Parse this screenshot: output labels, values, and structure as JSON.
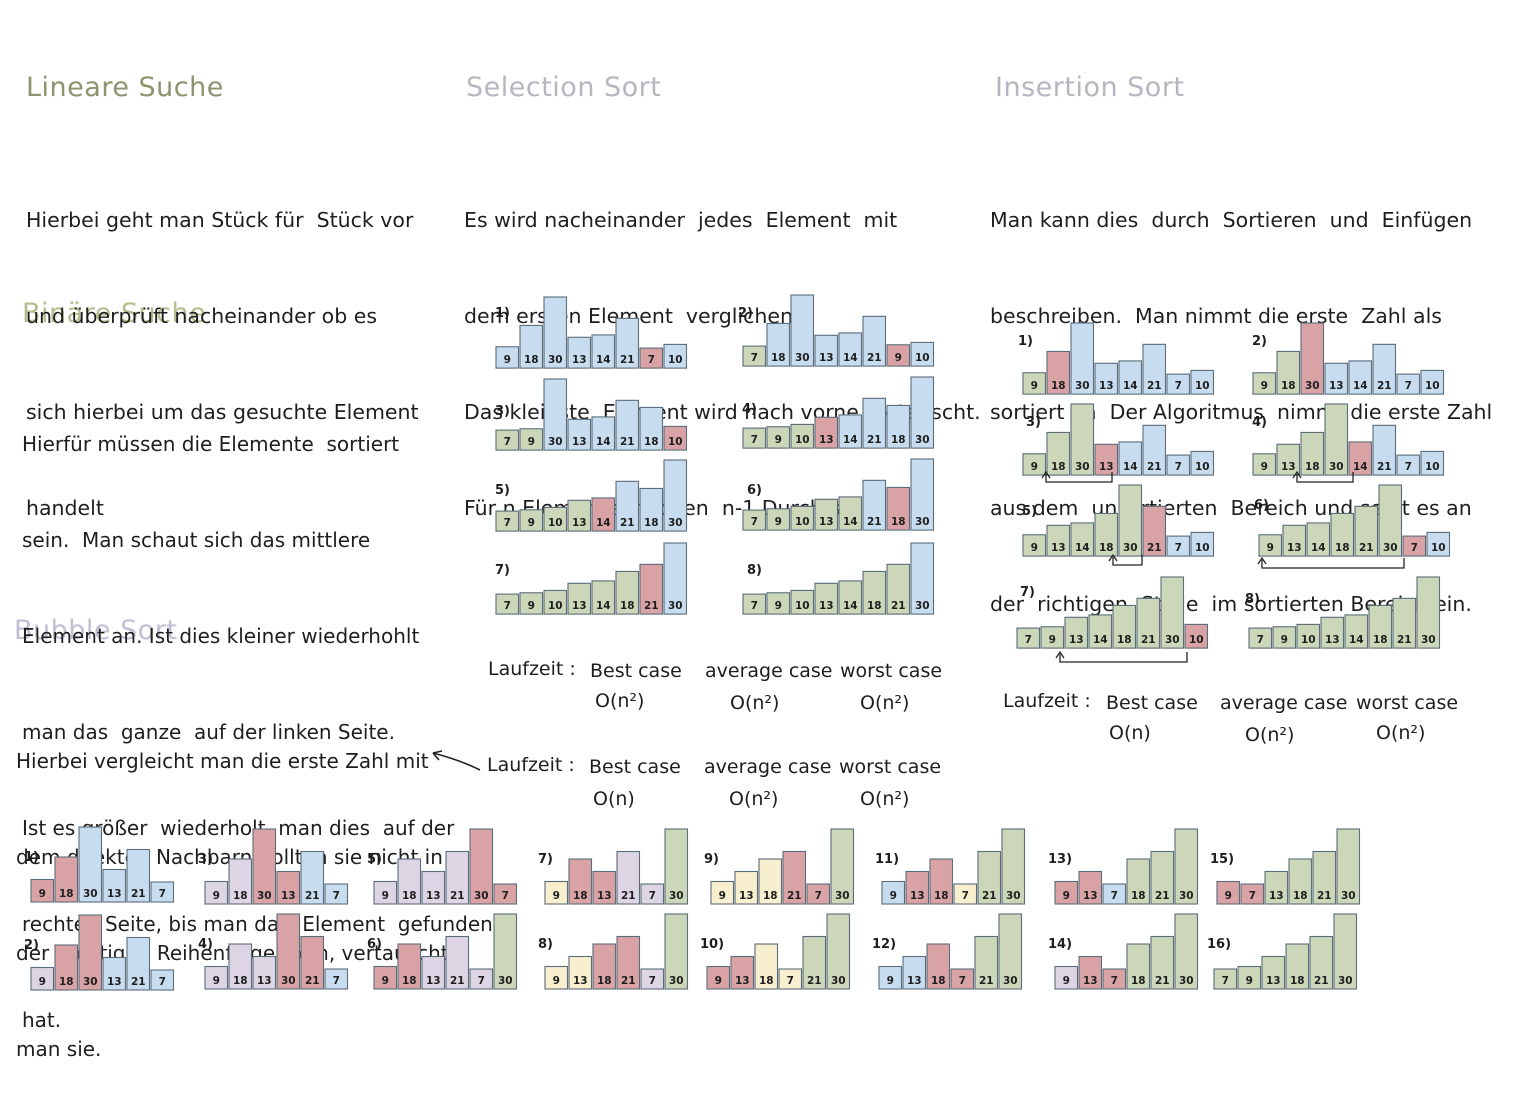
{
  "colors": {
    "blue": "#c8dcef",
    "red": "#d9a3a6",
    "green": "#cbd7b8",
    "lav": "#ddd5e4",
    "yellow": "#f8efcf",
    "stroke": "#5b6c7a"
  },
  "lineare": {
    "title": "Lineare Suche",
    "lines": [
      "Hierbei geht man Stück für  Stück vor",
      "und überprüft nacheinander ob es",
      "sich hierbei um das gesuchte Element",
      "handelt"
    ]
  },
  "binaere": {
    "title": "Binäre Suche",
    "lines": [
      "Hierfür müssen die Elemente  sortiert",
      "sein.  Man schaut sich das mittlere",
      "Element an. Ist dies kleiner wiederhohlt",
      "man das  ganze  auf der linken Seite.",
      "Ist es größer  wiederholt  man dies  auf der",
      "rechten Seite, bis man das  Element  gefunden",
      "hat."
    ]
  },
  "bubble": {
    "title": "Bubble  Sort",
    "lines": [
      "Hierbei vergleicht man die erste Zahl mit",
      "dem direkten Nachbarn Sollten sie nicht in",
      "der  richtigen Reihenfolge  sein, vertauscht",
      "man sie."
    ],
    "laufzeit": {
      "label": "Laufzeit :",
      "best_label": "Best case",
      "best": "O(n)",
      "avg_label": "average case",
      "avg": "O(n²)",
      "worst_label": "worst case",
      "worst": "O(n²)"
    }
  },
  "selection": {
    "title": "Selection  Sort",
    "lines": [
      "Es wird nacheinander  jedes  Element  mit",
      "dem ersten Element  verglichen.",
      "Das kleinste  Element wird nach vorne  getauscht.",
      "Für n Elemente  reichen  n-1 Durchgänge"
    ],
    "laufzeit": {
      "label": "Laufzeit :",
      "best_label": "Best case",
      "best": "O(n²)",
      "avg_label": "average case",
      "avg": "O(n²)",
      "worst_label": "worst case",
      "worst": "O(n²)"
    }
  },
  "insertion": {
    "title": "Insertion  Sort",
    "lines": [
      "Man kann dies  durch  Sortieren  und  Einfügen",
      "beschreiben.  Man nimmt die erste  Zahl als",
      "sortiert an  Der Algoritmus  nimmt die erste Zahl",
      "aus dem  unsortierten  Bereich und setzt es an",
      "der  richtigen  Stelle  im sortierten Bereich ein."
    ],
    "laufzeit": {
      "label": "Laufzeit :",
      "best_label": "Best case",
      "best": "O(n)",
      "avg_label": "average case",
      "avg": "O(n²)",
      "worst_label": "worst case",
      "worst": "O(n²)"
    }
  },
  "chart_data": [
    {
      "id": "sel1",
      "label": "1)",
      "type": "bar",
      "values": [
        9,
        18,
        30,
        13,
        14,
        21,
        7,
        10
      ],
      "colors": [
        "b",
        "b",
        "b",
        "b",
        "b",
        "b",
        "r",
        "b"
      ]
    },
    {
      "id": "sel2",
      "label": "2)",
      "type": "bar",
      "values": [
        7,
        18,
        30,
        13,
        14,
        21,
        9,
        10
      ],
      "colors": [
        "g",
        "b",
        "b",
        "b",
        "b",
        "b",
        "r",
        "b"
      ]
    },
    {
      "id": "sel3",
      "label": "3)",
      "type": "bar",
      "values": [
        7,
        9,
        30,
        13,
        14,
        21,
        18,
        10
      ],
      "colors": [
        "g",
        "g",
        "b",
        "b",
        "b",
        "b",
        "b",
        "r"
      ]
    },
    {
      "id": "sel4",
      "label": "4)",
      "type": "bar",
      "values": [
        7,
        9,
        10,
        13,
        14,
        21,
        18,
        30
      ],
      "colors": [
        "g",
        "g",
        "g",
        "r",
        "b",
        "b",
        "b",
        "b"
      ]
    },
    {
      "id": "sel5",
      "label": "5)",
      "type": "bar",
      "values": [
        7,
        9,
        10,
        13,
        14,
        21,
        18,
        30
      ],
      "colors": [
        "g",
        "g",
        "g",
        "g",
        "r",
        "b",
        "b",
        "b"
      ]
    },
    {
      "id": "sel6",
      "label": "6)",
      "type": "bar",
      "values": [
        7,
        9,
        10,
        13,
        14,
        21,
        18,
        30
      ],
      "colors": [
        "g",
        "g",
        "g",
        "g",
        "g",
        "b",
        "r",
        "b"
      ]
    },
    {
      "id": "sel7",
      "label": "7)",
      "type": "bar",
      "values": [
        7,
        9,
        10,
        13,
        14,
        18,
        21,
        30
      ],
      "colors": [
        "g",
        "g",
        "g",
        "g",
        "g",
        "g",
        "r",
        "b"
      ]
    },
    {
      "id": "sel8",
      "label": "8)",
      "type": "bar",
      "values": [
        7,
        9,
        10,
        13,
        14,
        18,
        21,
        30
      ],
      "colors": [
        "g",
        "g",
        "g",
        "g",
        "g",
        "g",
        "g",
        "b"
      ]
    },
    {
      "id": "ins1",
      "label": "1)",
      "type": "bar",
      "values": [
        9,
        18,
        30,
        13,
        14,
        21,
        7,
        10
      ],
      "colors": [
        "g",
        "r",
        "b",
        "b",
        "b",
        "b",
        "b",
        "b"
      ]
    },
    {
      "id": "ins2",
      "label": "2)",
      "type": "bar",
      "values": [
        9,
        18,
        30,
        13,
        14,
        21,
        7,
        10
      ],
      "colors": [
        "g",
        "g",
        "r",
        "b",
        "b",
        "b",
        "b",
        "b"
      ]
    },
    {
      "id": "ins3",
      "label": "3)",
      "type": "bar",
      "values": [
        9,
        18,
        30,
        13,
        14,
        21,
        7,
        10
      ],
      "colors": [
        "g",
        "g",
        "g",
        "r",
        "b",
        "b",
        "b",
        "b"
      ]
    },
    {
      "id": "ins4",
      "label": "4)",
      "type": "bar",
      "values": [
        9,
        13,
        18,
        30,
        14,
        21,
        7,
        10
      ],
      "colors": [
        "g",
        "g",
        "g",
        "g",
        "r",
        "b",
        "b",
        "b"
      ]
    },
    {
      "id": "ins5",
      "label": "5)",
      "type": "bar",
      "values": [
        9,
        13,
        14,
        18,
        30,
        21,
        7,
        10
      ],
      "colors": [
        "g",
        "g",
        "g",
        "g",
        "g",
        "r",
        "b",
        "b"
      ]
    },
    {
      "id": "ins6",
      "label": "6)",
      "type": "bar",
      "values": [
        9,
        13,
        14,
        18,
        21,
        30,
        7,
        10
      ],
      "colors": [
        "g",
        "g",
        "g",
        "g",
        "g",
        "g",
        "r",
        "b"
      ]
    },
    {
      "id": "ins7",
      "label": "7)",
      "type": "bar",
      "values": [
        7,
        9,
        13,
        14,
        18,
        21,
        30,
        10
      ],
      "colors": [
        "g",
        "g",
        "g",
        "g",
        "g",
        "g",
        "g",
        "r"
      ]
    },
    {
      "id": "ins8",
      "label": "8)",
      "type": "bar",
      "values": [
        7,
        9,
        10,
        13,
        14,
        18,
        21,
        30
      ],
      "colors": [
        "g",
        "g",
        "g",
        "g",
        "g",
        "g",
        "g",
        "g"
      ]
    },
    {
      "id": "bub1",
      "label": "1)",
      "type": "bar",
      "values": [
        9,
        18,
        30,
        13,
        21,
        7
      ],
      "colors": [
        "r",
        "r",
        "b",
        "b",
        "b",
        "b"
      ]
    },
    {
      "id": "bub2",
      "label": "2)",
      "type": "bar",
      "values": [
        9,
        18,
        30,
        13,
        21,
        7
      ],
      "colors": [
        "l",
        "r",
        "r",
        "b",
        "b",
        "b"
      ]
    },
    {
      "id": "bub3",
      "label": "3)",
      "type": "bar",
      "values": [
        9,
        18,
        30,
        13,
        21,
        7
      ],
      "colors": [
        "l",
        "l",
        "r",
        "r",
        "b",
        "b"
      ]
    },
    {
      "id": "bub4",
      "label": "4)",
      "type": "bar",
      "values": [
        9,
        18,
        13,
        30,
        21,
        7
      ],
      "colors": [
        "l",
        "l",
        "l",
        "r",
        "r",
        "b"
      ]
    },
    {
      "id": "bub5",
      "label": "5)",
      "type": "bar",
      "values": [
        9,
        18,
        13,
        21,
        30,
        7
      ],
      "colors": [
        "l",
        "l",
        "l",
        "l",
        "r",
        "r"
      ]
    },
    {
      "id": "bub6",
      "label": "6)",
      "type": "bar",
      "values": [
        9,
        18,
        13,
        21,
        7,
        30
      ],
      "colors": [
        "r",
        "r",
        "l",
        "l",
        "l",
        "g"
      ]
    },
    {
      "id": "bub7",
      "label": "7)",
      "type": "bar",
      "values": [
        9,
        18,
        13,
        21,
        7,
        30
      ],
      "colors": [
        "y",
        "r",
        "r",
        "l",
        "l",
        "g"
      ]
    },
    {
      "id": "bub8",
      "label": "8)",
      "type": "bar",
      "values": [
        9,
        13,
        18,
        21,
        7,
        30
      ],
      "colors": [
        "y",
        "y",
        "r",
        "r",
        "l",
        "g"
      ]
    },
    {
      "id": "bub9",
      "label": "9)",
      "type": "bar",
      "values": [
        9,
        13,
        18,
        21,
        7,
        30
      ],
      "colors": [
        "y",
        "y",
        "y",
        "r",
        "r",
        "g"
      ]
    },
    {
      "id": "bub10",
      "label": "10)",
      "type": "bar",
      "values": [
        9,
        13,
        18,
        7,
        21,
        30
      ],
      "colors": [
        "r",
        "r",
        "y",
        "y",
        "g",
        "g"
      ]
    },
    {
      "id": "bub11",
      "label": "11)",
      "type": "bar",
      "values": [
        9,
        13,
        18,
        7,
        21,
        30
      ],
      "colors": [
        "b",
        "r",
        "r",
        "y",
        "g",
        "g"
      ]
    },
    {
      "id": "bub12",
      "label": "12)",
      "type": "bar",
      "values": [
        9,
        13,
        18,
        7,
        21,
        30
      ],
      "colors": [
        "b",
        "b",
        "r",
        "r",
        "g",
        "g"
      ]
    },
    {
      "id": "bub13",
      "label": "13)",
      "type": "bar",
      "values": [
        9,
        13,
        7,
        18,
        21,
        30
      ],
      "colors": [
        "r",
        "r",
        "b",
        "g",
        "g",
        "g"
      ]
    },
    {
      "id": "bub14",
      "label": "14)",
      "type": "bar",
      "values": [
        9,
        13,
        7,
        18,
        21,
        30
      ],
      "colors": [
        "l",
        "r",
        "r",
        "g",
        "g",
        "g"
      ]
    },
    {
      "id": "bub15",
      "label": "15)",
      "type": "bar",
      "values": [
        9,
        7,
        13,
        18,
        21,
        30
      ],
      "colors": [
        "r",
        "r",
        "g",
        "g",
        "g",
        "g"
      ]
    },
    {
      "id": "bub16",
      "label": "16)",
      "type": "bar",
      "values": [
        7,
        9,
        13,
        18,
        21,
        30
      ],
      "colors": [
        "g",
        "g",
        "g",
        "g",
        "g",
        "g"
      ]
    }
  ]
}
